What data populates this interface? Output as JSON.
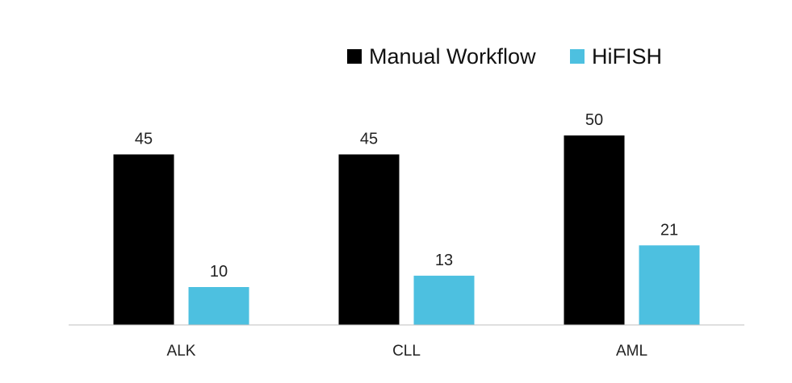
{
  "chart_data": {
    "type": "bar",
    "title": "",
    "xlabel": "",
    "ylabel": "",
    "categories": [
      "ALK",
      "CLL",
      "AML"
    ],
    "series": [
      {
        "name": "Manual Workflow",
        "values": [
          45,
          45,
          50
        ],
        "color": "#000000"
      },
      {
        "name": "HiFISH",
        "values": [
          10,
          13,
          21
        ],
        "color": "#4dc0e0"
      }
    ],
    "ylim": [
      0,
      50
    ],
    "grid": false,
    "legend_position": "top-right",
    "data_labels": true,
    "axis_color": "#bfbfbf"
  }
}
